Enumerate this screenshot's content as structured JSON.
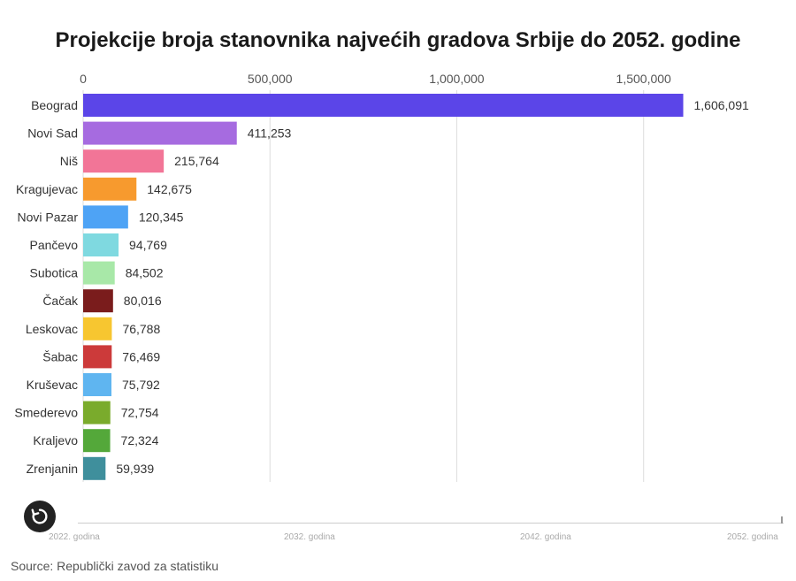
{
  "chart_data": {
    "type": "bar",
    "orientation": "horizontal",
    "title": "Projekcije broja stanovnika najvećih gradova Srbije do 2052. godine",
    "categories": [
      "Beograd",
      "Novi Sad",
      "Niš",
      "Kragujevac",
      "Novi Pazar",
      "Pančevo",
      "Subotica",
      "Čačak",
      "Leskovac",
      "Šabac",
      "Kruševac",
      "Smederevo",
      "Kraljevo",
      "Zrenjanin"
    ],
    "values": [
      1606091,
      411253,
      215764,
      142675,
      120345,
      94769,
      84502,
      80016,
      76788,
      76469,
      75792,
      72754,
      72324,
      59939
    ],
    "value_labels": [
      "1,606,091",
      "411,253",
      "215,764",
      "142,675",
      "120,345",
      "94,769",
      "84,502",
      "80,016",
      "76,788",
      "76,469",
      "75,792",
      "72,754",
      "72,324",
      "59,939"
    ],
    "colors": [
      "#5b45e8",
      "#a66be0",
      "#f27597",
      "#f79a2e",
      "#4ea3f5",
      "#7fd9e0",
      "#a8e8a8",
      "#7a1c1c",
      "#f7c630",
      "#cc3a3a",
      "#5fb5f0",
      "#7aab2c",
      "#54a83a",
      "#3f8f9c"
    ],
    "x_ticks": [
      0,
      500000,
      1000000,
      1500000
    ],
    "x_tick_labels": [
      "0",
      "500,000",
      "1,000,000",
      "1,500,000"
    ],
    "xlim": [
      0,
      1600000
    ],
    "grid": true,
    "axis_position": "top"
  },
  "timeline": {
    "labels": [
      "2022. godina",
      "2032. godina",
      "2042. godina",
      "2052. godina"
    ]
  },
  "controls": {
    "replay_icon": "replay-icon"
  },
  "source": "Source: Republički zavod za statistiku"
}
